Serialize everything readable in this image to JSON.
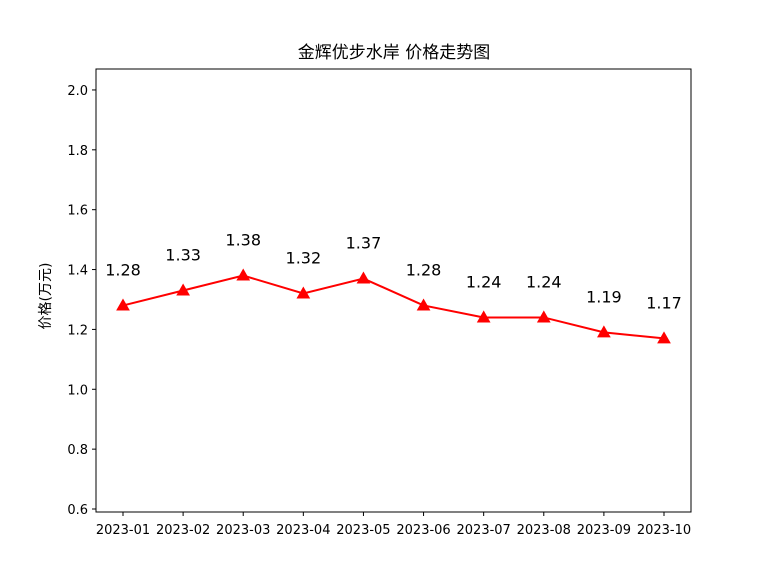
{
  "chart_data": {
    "type": "line",
    "title": "金辉优步水岸 价格走势图",
    "xlabel": "",
    "ylabel": "价格(万元)",
    "categories": [
      "2023-01",
      "2023-02",
      "2023-03",
      "2023-04",
      "2023-05",
      "2023-06",
      "2023-07",
      "2023-08",
      "2023-09",
      "2023-10"
    ],
    "values": [
      1.28,
      1.33,
      1.38,
      1.32,
      1.37,
      1.28,
      1.24,
      1.24,
      1.19,
      1.17
    ],
    "data_labels": [
      "1.28",
      "1.33",
      "1.38",
      "1.32",
      "1.37",
      "1.28",
      "1.24",
      "1.24",
      "1.19",
      "1.17"
    ],
    "yticks": [
      "0.6",
      "0.8",
      "1.0",
      "1.2",
      "1.4",
      "1.6",
      "1.8",
      "2.0"
    ],
    "ylim": [
      0.59,
      2.07
    ],
    "series_color": "#ff0000",
    "marker": "triangle-up",
    "grid": false,
    "legend": "none"
  }
}
